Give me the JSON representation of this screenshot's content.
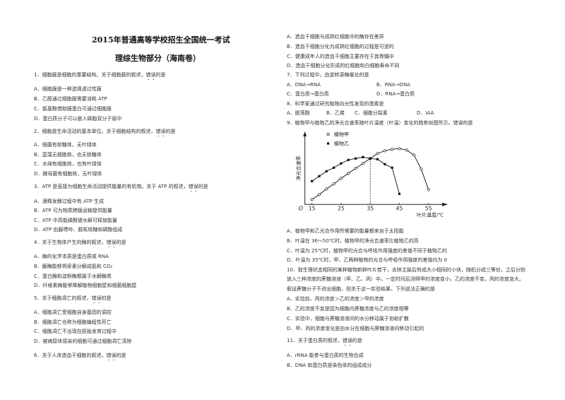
{
  "header": {
    "title": "2015年普通高等学校招生全国统一考试",
    "subtitle": "理综生物部分（海南卷）"
  },
  "questions": [
    {
      "stem": "1．细胞膜是细胞的重要结构。关于细胞膜的叙述，",
      "emph": "错误",
      "tail": "的是",
      "options": [
        "A．细胞膜是一种选择透过性膜",
        "B．乙醇通过细胞膜需要消耗 ATP",
        "C．氨基酸借助膜蛋白可通过细胞膜",
        "D．蛋白质分子可以嵌入磷脂双分子层中"
      ]
    },
    {
      "stem": "2．细胞是生命活动的基本单位。关于细胞结构的叙述，",
      "emph": "错误",
      "tail": "的是",
      "options": [
        "A．细菌有核糖体，无叶绿体",
        "B．蓝藻无细胞核，也无核糖体",
        "C．水绵有细胞核，也有叶绿体",
        "D．酵母菌有细胞核，无叶绿体"
      ]
    },
    {
      "stem": "3．ATP 是直接为细胞生命活动提供能量的有机物。关于 ATP 的叙述，",
      "emph": "错误",
      "tail": "的是",
      "options": [
        "A．酒精发酵过程中有 ATP 生成",
        "B．ATP 可为物质跨膜运输提供能量",
        "C．ATP 中高能磷酸键水解可释放能量",
        "D．ATP 由腺嘌呤、脱氧核糖和磷酸组成"
      ]
    },
    {
      "stem": "4．关于生物体产生的酶的叙述，",
      "emph": "错误",
      "tail": "的是",
      "options": [
        "A．酶的化学本质是蛋白质或 RNA",
        "B．脲酶能够将尿素分解成氨和 CO₂",
        "C．蛋白酶和淀粉酶都属于水解酶类",
        "D．纤维素酶能够降解植物细胞壁和细菌细胞壁"
      ]
    },
    {
      "stem": "5．关于细胞凋亡的叙述，",
      "emph": "错误",
      "tail": "的是",
      "options": [
        "A．细胞凋亡受细胞自身基因的调控",
        "B．细胞凋亡也称为细胞编程性死亡",
        "C．细胞凋亡不出现在胚胎发育过程中",
        "D．被病原体感染的细胞可通过细胞凋亡清除"
      ]
    },
    {
      "stem": "6．关于人体造血干细胞的叙述，",
      "emph": "错误",
      "tail": "的是",
      "options": [
        "A．造血干细胞与成熟红细胞中的酶存在差异",
        "B．造血干细胞分化为成熟红细胞的过程是可逆的",
        "C．健康成年人的造血干细胞主要存在于其骨髓中",
        "D．造血干细胞分化形成的红细胞和白细胞寿命不同"
      ]
    },
    {
      "stem": "7．下列过程中，由逆转录酶催化的是",
      "emph": "",
      "tail": "",
      "options": [
        "A．DNA→RNA",
        "B．RNA→DNA",
        "C．蛋白质→蛋白质",
        "D．RNA→蛋白质"
      ]
    },
    {
      "stem": "8．科学家通过研究植物向光性发现的激素是",
      "emph": "",
      "tail": "",
      "options": [
        "A．脱落酸",
        "B．乙烯",
        "C．细胞分裂素",
        "D．IAA"
      ]
    },
    {
      "stem": "9．植物甲与植物乙的净光合速率随叶片温度（叶温）变化的趋势如图所示。错误的是",
      "emph": "",
      "tail": "",
      "options": [
        "A．植物甲和乙光合作用所需要的能量都来自于太阳能",
        "B．叶温在 36～50℃时，植物甲的净光合速率比植物乙的高",
        "C．叶温为 25℃时，植物甲的光合与呼吸作用强度的差值不同于植物乙的",
        "D．叶温为 35℃时，甲、乙两种植物的光合与呼吸作用强度的差值均为 0"
      ]
    },
    {
      "stem": "10．取生理状态相同的某种植物新鲜叶片若干，去除主脉后剪成大小相同的小块，随机分成三等份，之后分别",
      "stem2": "放入三种浓度的蔗糖溶液（甲、乙、丙）中，一定时间后测得甲的浓度变小，乙的浓度不变，丙的浓度变大。",
      "stem3": "假设蔗糖分子不进出细胞，则关于这一实验结果，下列说法正确的是",
      "emph": "",
      "tail": "",
      "options": [
        "A．实验前，丙的浓度＞乙的浓度＞甲的浓度",
        "B．乙的浓度不变是因为细胞内蔗糖浓度与乙的浓度相等",
        "C．实验中，细胞与蔗糖溶液间的水分移动属于协助扩散",
        "D．甲、丙的浓度变化是由水分在细胞与蔗糖溶液间移动引起的"
      ]
    },
    {
      "stem": "11．关于蛋白质的叙述，",
      "emph": "错误",
      "tail": "的是",
      "options": [
        "A．rRNA 能参与蛋白质的生物合成",
        "B．DNA 和蛋白质是染色体的组成成分"
      ]
    }
  ],
  "chart_data": {
    "type": "line",
    "title": "",
    "xlabel": "叶片温度/℃",
    "ylabel": "净光合速率",
    "origin_label": "O",
    "x_ticks": [
      15,
      25,
      35,
      45,
      55
    ],
    "xlim": [
      12.5,
      61
    ],
    "ylim": [
      0,
      10
    ],
    "grid": false,
    "legend_placement": "top-left",
    "reference_line_x": 35,
    "series": [
      {
        "name": "植物甲",
        "marker": "open-circle",
        "x": [
          15,
          17.5,
          20,
          22.5,
          25,
          27.5,
          30,
          32.5,
          35,
          37.5,
          40,
          42.5,
          45,
          47.5,
          50,
          52.5,
          55
        ],
        "y": [
          0.7,
          1.4,
          2.2,
          2.9,
          3.7,
          4.4,
          5.1,
          5.8,
          6.5,
          7.2,
          7.6,
          7.8,
          7.9,
          7.7,
          7.0,
          5.0,
          2.1
        ]
      },
      {
        "name": "植物乙",
        "marker": "filled-circle",
        "x": [
          15,
          17.5,
          20,
          22.5,
          25,
          27.5,
          30,
          32.5,
          35,
          37.5,
          40,
          42.5,
          45
        ],
        "y": [
          3.3,
          4.0,
          4.7,
          5.2,
          5.8,
          6.3,
          6.5,
          6.7,
          6.5,
          6.4,
          5.7,
          5.2,
          1.5
        ]
      }
    ]
  }
}
